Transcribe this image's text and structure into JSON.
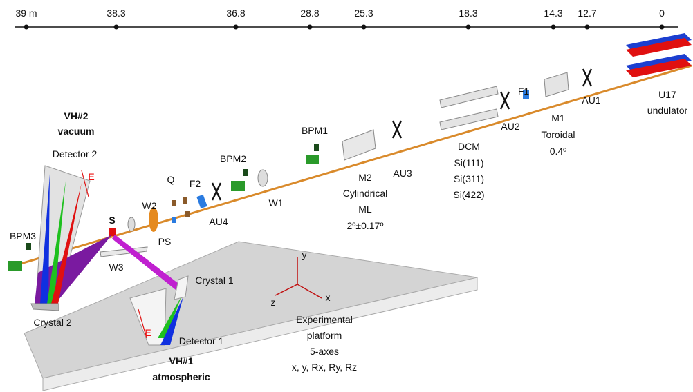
{
  "scale": {
    "ticks": [
      "39 m",
      "38.3",
      "36.8",
      "28.8",
      "25.3",
      "18.3",
      "14.3",
      "12.7",
      "0"
    ]
  },
  "labels": {
    "vh2": "VH#2",
    "vacuum": "vacuum",
    "detector2": "Detector 2",
    "e_top": "E",
    "bpm3": "BPM3",
    "s": "S",
    "w2": "W2",
    "ps": "PS",
    "q": "Q",
    "f2": "F2",
    "au4": "AU4",
    "bpm2": "BPM2",
    "w1": "W1",
    "bpm1": "BPM1",
    "au3": "AU3",
    "m2": [
      "M2",
      "Cylindrical",
      "ML",
      "2º±0.17º"
    ],
    "dcm": [
      "DCM",
      "Si(111)",
      "Si(311)",
      "Si(422)"
    ],
    "au2": "AU2",
    "f1": "F1",
    "m1": [
      "M1",
      "Toroidal",
      "0.4º"
    ],
    "au1": "AU1",
    "u17": [
      "U17",
      "undulator"
    ],
    "w3": "W3",
    "crystal1": "Crystal 1",
    "crystal2": "Crystal 2",
    "detector1": "Detector 1",
    "e_bottom": "E",
    "vh1": "VH#1",
    "atmospheric": "atmospheric",
    "axis_y": "y",
    "axis_z": "z",
    "axis_x": "x",
    "platform": [
      "Experimental",
      "platform",
      "5-axes",
      "x, y, Rx, Ry, Rz"
    ]
  }
}
